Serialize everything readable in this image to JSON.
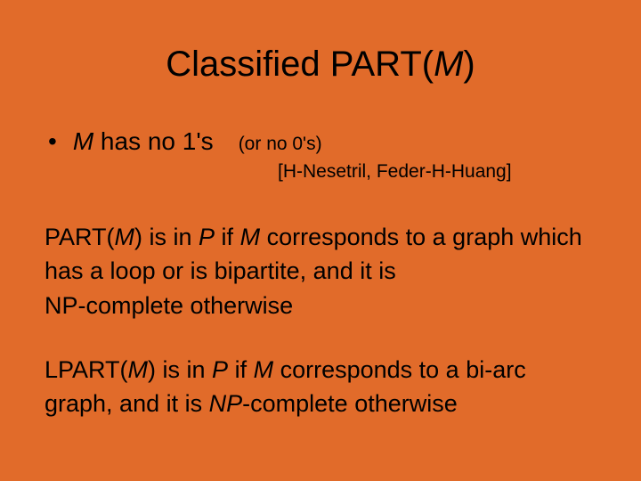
{
  "background_color": "#e16b2a",
  "text_color": "#000000",
  "font_family": "Arial",
  "title": {
    "prefix": "Classified PART(",
    "italic": "M",
    "suffix": ")",
    "fontsize": 40
  },
  "bullet": {
    "mark": "•",
    "italic1": "M",
    "text": " has no 1's",
    "note": "(or no 0's)",
    "fontsize": 28,
    "note_fontsize": 21
  },
  "citation": {
    "text": "[H-Nesetril, Feder-H-Huang]",
    "fontsize": 21
  },
  "para1": {
    "seg1": "PART(",
    "it1": "M",
    "seg2": ") is in ",
    "it2": "P",
    "seg3": " if ",
    "it3": "M",
    "seg4": " corresponds to a graph which has a loop or is bipartite, and it is",
    "seg5": "NP-complete otherwise",
    "fontsize": 27
  },
  "para2": {
    "seg1": "LPART(",
    "it1": "M",
    "seg2": ") is in ",
    "it2": "P",
    "seg3": " if ",
    "it3": "M",
    "seg4": " corresponds to a bi-arc graph, and it is ",
    "it4": "NP",
    "seg5": "-complete otherwise",
    "fontsize": 27
  }
}
